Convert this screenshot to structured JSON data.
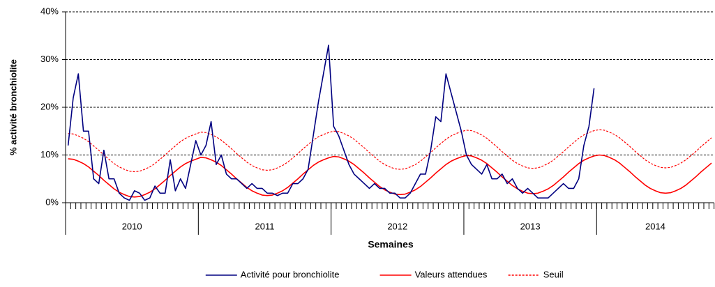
{
  "chart_data": {
    "type": "line",
    "ylabel": "% activité bronchiolite",
    "xlabel": "Semaines",
    "groups": [
      {
        "label": "2010",
        "count": 26
      },
      {
        "label": "2011",
        "count": 26
      },
      {
        "label": "2012",
        "count": 26
      },
      {
        "label": "2013",
        "count": 26
      },
      {
        "label": "2014",
        "count": 23
      }
    ],
    "ylim": [
      0,
      40
    ],
    "yticks": [
      {
        "value": 0,
        "label": "0%"
      },
      {
        "value": 10,
        "label": "10%"
      },
      {
        "value": 20,
        "label": "20%"
      },
      {
        "value": 30,
        "label": "30%"
      },
      {
        "value": 40,
        "label": "40%"
      }
    ],
    "grid": true,
    "legend": "bottom",
    "series": [
      {
        "name": "Activité pour bronchiolite",
        "color": "#000080",
        "dashed": false,
        "values": [
          12,
          22,
          27,
          15,
          15,
          5,
          4,
          11,
          5,
          5,
          2,
          1,
          0.5,
          2.5,
          2,
          0.5,
          1,
          3.5,
          2,
          2,
          9,
          2.5,
          5,
          3,
          8,
          13,
          10,
          12,
          17,
          8,
          10,
          6,
          5,
          5,
          4,
          3,
          4,
          3,
          3,
          2,
          2,
          1.5,
          2,
          2,
          4,
          4,
          5,
          7,
          14,
          21,
          27,
          33,
          16,
          14,
          11,
          8,
          6,
          5,
          4,
          3,
          4,
          3,
          3,
          2,
          2,
          1,
          1,
          2,
          4,
          6,
          6,
          11,
          18,
          17,
          27,
          23,
          19,
          15,
          10,
          8,
          7,
          6,
          8,
          5,
          5,
          6,
          4,
          5,
          3,
          2,
          3,
          2,
          1,
          1,
          1,
          2,
          3,
          4,
          3,
          3,
          5,
          12,
          16,
          24,
          null,
          null,
          null,
          null,
          null,
          null,
          null,
          null,
          null,
          null,
          null,
          null,
          null,
          null,
          null,
          null,
          null,
          null,
          null,
          null,
          null,
          null,
          null
        ]
      },
      {
        "name": "Valeurs attendues",
        "color": "#ff0000",
        "dashed": false,
        "values": [
          9.2,
          9.1,
          8.7,
          8.2,
          7.5,
          6.6,
          5.7,
          4.7,
          3.8,
          2.9,
          2.2,
          1.7,
          1.3,
          1.2,
          1.3,
          1.7,
          2.2,
          2.9,
          3.8,
          4.7,
          5.7,
          6.6,
          7.5,
          8.2,
          8.7,
          9.1,
          9.5,
          9.4,
          9.0,
          8.5,
          7.8,
          6.9,
          6.0,
          5.0,
          4.1,
          3.2,
          2.5,
          2.0,
          1.6,
          1.5,
          1.6,
          2.0,
          2.5,
          3.2,
          4.1,
          5.0,
          6.0,
          6.9,
          7.8,
          8.5,
          9.0,
          9.4,
          9.7,
          9.6,
          9.2,
          8.7,
          8.0,
          7.1,
          6.2,
          5.2,
          4.3,
          3.4,
          2.7,
          2.2,
          1.8,
          1.7,
          1.8,
          2.2,
          2.7,
          3.4,
          4.3,
          5.2,
          6.2,
          7.1,
          8.0,
          8.7,
          9.2,
          9.6,
          9.9,
          9.8,
          9.4,
          8.9,
          8.2,
          7.3,
          6.4,
          5.4,
          4.5,
          3.6,
          2.9,
          2.4,
          2.0,
          1.9,
          2.0,
          2.4,
          2.9,
          3.6,
          4.5,
          5.4,
          6.4,
          7.3,
          8.2,
          8.9,
          9.4,
          9.8,
          10.0,
          9.9,
          9.5,
          9.0,
          8.3,
          7.4,
          6.5,
          5.5,
          4.6,
          3.7,
          3.0,
          2.5,
          2.1,
          2.0,
          2.1,
          2.5,
          3.0,
          3.7,
          4.6,
          5.5,
          6.5,
          7.4,
          8.3
        ]
      },
      {
        "name": "Seuil",
        "color": "#ff0000",
        "dashed": true,
        "values": [
          14.5,
          14.4,
          14.0,
          13.5,
          12.8,
          11.9,
          11.0,
          10.0,
          9.1,
          8.2,
          7.5,
          7.0,
          6.6,
          6.5,
          6.6,
          7.0,
          7.5,
          8.2,
          9.1,
          10.0,
          11.0,
          11.9,
          12.8,
          13.5,
          14.0,
          14.4,
          14.8,
          14.7,
          14.3,
          13.8,
          13.1,
          12.2,
          11.3,
          10.3,
          9.4,
          8.5,
          7.8,
          7.3,
          6.9,
          6.8,
          6.9,
          7.3,
          7.8,
          8.5,
          9.4,
          10.3,
          11.3,
          12.2,
          13.1,
          13.8,
          14.3,
          14.7,
          15.0,
          14.9,
          14.5,
          14.0,
          13.3,
          12.4,
          11.5,
          10.5,
          9.6,
          8.7,
          8.0,
          7.5,
          7.1,
          7.0,
          7.1,
          7.5,
          8.0,
          8.7,
          9.6,
          10.5,
          11.5,
          12.4,
          13.3,
          14.0,
          14.5,
          14.9,
          15.2,
          15.1,
          14.7,
          14.2,
          13.5,
          12.6,
          11.7,
          10.7,
          9.8,
          8.9,
          8.2,
          7.7,
          7.3,
          7.2,
          7.3,
          7.7,
          8.2,
          8.9,
          9.8,
          10.7,
          11.7,
          12.6,
          13.5,
          14.2,
          14.7,
          15.1,
          15.3,
          15.2,
          14.8,
          14.3,
          13.6,
          12.7,
          11.8,
          10.8,
          9.9,
          9.0,
          8.3,
          7.8,
          7.4,
          7.3,
          7.4,
          7.8,
          8.3,
          9.0,
          9.9,
          10.8,
          11.8,
          12.7,
          13.6
        ]
      }
    ]
  }
}
